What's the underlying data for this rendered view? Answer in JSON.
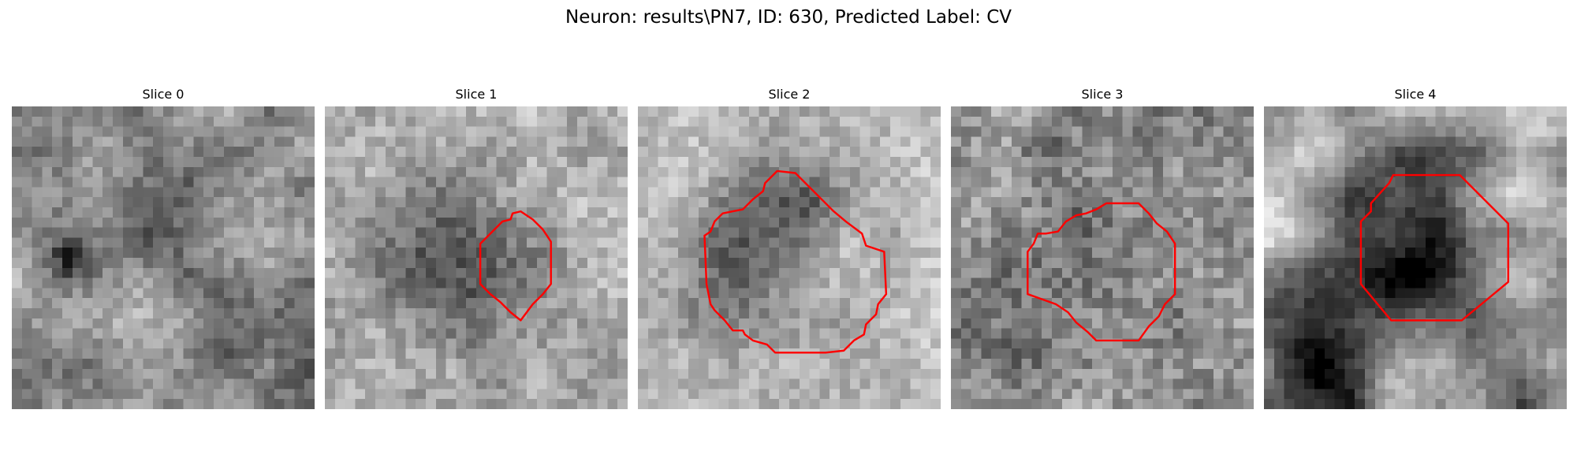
{
  "figure": {
    "title": "Neuron: results\\PN7, ID: 630, Predicted Label: CV",
    "contour_color": "#ff0000"
  },
  "slices": [
    {
      "label": "Slice 0",
      "contour": false
    },
    {
      "label": "Slice 1",
      "contour": true
    },
    {
      "label": "Slice 2",
      "contour": true
    },
    {
      "label": "Slice 3",
      "contour": true
    },
    {
      "label": "Slice 4",
      "contour": true
    }
  ]
}
